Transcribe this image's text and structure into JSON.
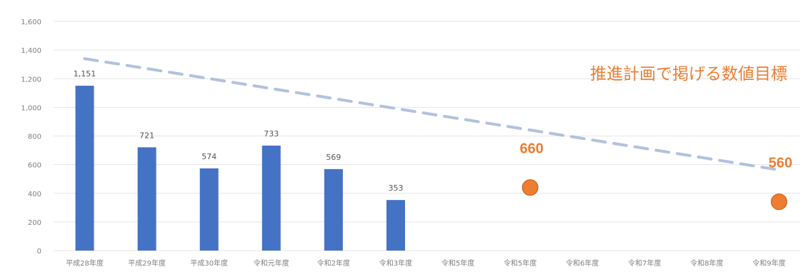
{
  "chart_data": {
    "type": "bar",
    "categories": [
      "平成28年度",
      "平成29年度",
      "平成30年度",
      "令和元年度",
      "令和2年度",
      "令和3年度",
      "令和5年度",
      "令和5年度",
      "令和6年度",
      "令和7年度",
      "令和8年度",
      "令和9年度"
    ],
    "series": [
      {
        "values": [
          1151,
          721,
          574,
          733,
          569,
          353,
          null,
          null,
          null,
          null,
          null,
          null
        ],
        "labels": [
          "1,151",
          "721",
          "574",
          "733",
          "569",
          "353",
          "",
          "",
          "",
          "",
          "",
          ""
        ]
      }
    ],
    "targets": [
      {
        "category_index": 7,
        "value": 660,
        "label": "660"
      },
      {
        "category_index": 11,
        "value": 560,
        "label": "560"
      }
    ],
    "trend_line": {
      "from": [
        0,
        1340
      ],
      "to": [
        11,
        560
      ]
    },
    "annotation": "推進計画で掲げる数値目標",
    "ylim": [
      0,
      1600
    ],
    "y_ticks": [
      0,
      200,
      400,
      600,
      800,
      1000,
      1200,
      1400,
      1600
    ],
    "y_tick_labels": [
      "0",
      "200",
      "400",
      "600",
      "800",
      "1,000",
      "1,200",
      "1,400",
      "1,600"
    ],
    "grid": true,
    "title": "",
    "xlabel": "",
    "ylabel": "",
    "colors": {
      "bar": "#4472c4",
      "target": "#ed7d31",
      "annotation": "#ed7d31",
      "trend": "#a5b8d8",
      "grid": "#e6e6e6"
    }
  }
}
